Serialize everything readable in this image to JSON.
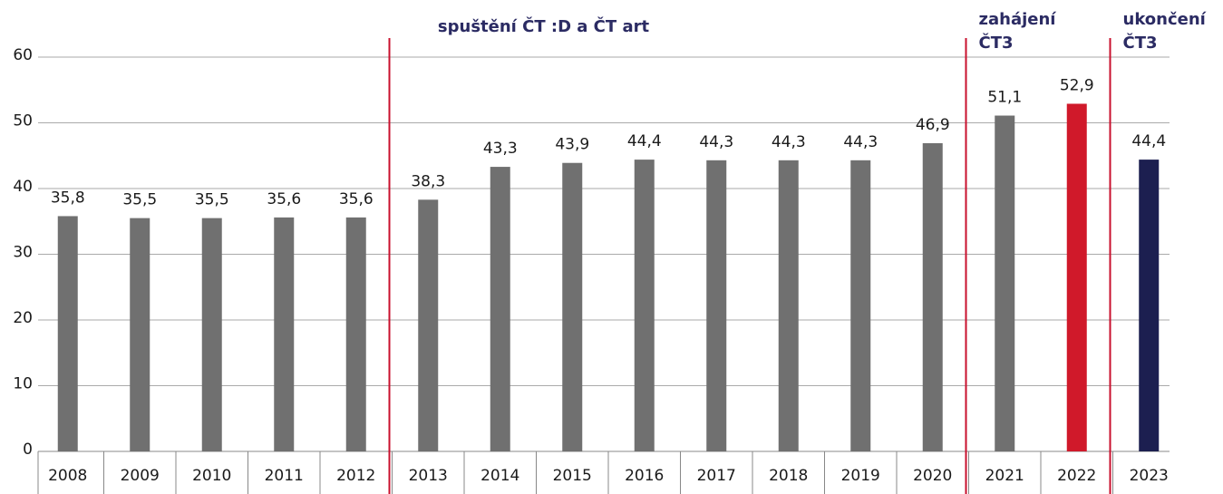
{
  "chart_data": {
    "type": "bar",
    "categories": [
      "2008",
      "2009",
      "2010",
      "2011",
      "2012",
      "2013",
      "2014",
      "2015",
      "2016",
      "2017",
      "2018",
      "2019",
      "2020",
      "2021",
      "2022",
      "2023"
    ],
    "values": [
      35.8,
      35.5,
      35.5,
      35.6,
      35.6,
      38.3,
      43.3,
      43.9,
      44.4,
      44.3,
      44.3,
      44.3,
      46.9,
      51.1,
      52.9,
      44.4
    ],
    "value_labels": [
      "35,8",
      "35,5",
      "35,5",
      "35,6",
      "35,6",
      "38,3",
      "43,3",
      "43,9",
      "44,4",
      "44,3",
      "44,3",
      "44,3",
      "46,9",
      "51,1",
      "52,9",
      "44,4"
    ],
    "colors": [
      "#707070",
      "#707070",
      "#707070",
      "#707070",
      "#707070",
      "#707070",
      "#707070",
      "#707070",
      "#707070",
      "#707070",
      "#707070",
      "#707070",
      "#707070",
      "#707070",
      "#d0192a",
      "#1c1f50"
    ],
    "ylim": [
      0,
      60
    ],
    "yticks": [
      0,
      10,
      20,
      30,
      40,
      50,
      60
    ],
    "grid": true,
    "annotations": [
      {
        "lines": [
          "spuštění ČT :D a ČT art"
        ],
        "category": "2013"
      },
      {
        "lines": [
          "zahájení",
          "ČT3"
        ],
        "category": "2021"
      },
      {
        "lines": [
          "ukončení",
          "ČT3"
        ],
        "category": "2023"
      }
    ],
    "divider_color": "#c8102e"
  }
}
